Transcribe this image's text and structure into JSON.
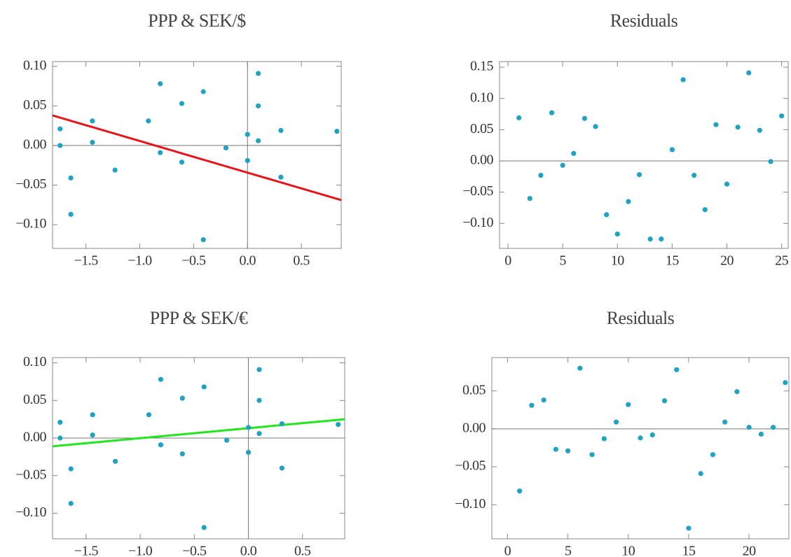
{
  "chart_data": [
    {
      "type": "scatter",
      "title": "PPP & SEK/$",
      "x": [
        -1.74,
        -1.74,
        -1.64,
        -1.64,
        -1.44,
        -1.44,
        -1.23,
        -0.92,
        -0.81,
        -0.81,
        -0.61,
        -0.61,
        -0.41,
        -0.41,
        -0.2,
        0.0,
        0.0,
        0.1,
        0.1,
        0.1,
        0.31,
        0.31,
        0.83
      ],
      "values": [
        0.021,
        0.0,
        -0.041,
        -0.087,
        0.031,
        0.004,
        -0.031,
        0.031,
        0.078,
        -0.009,
        0.053,
        -0.021,
        0.068,
        -0.119,
        -0.003,
        0.014,
        -0.019,
        0.091,
        0.05,
        0.006,
        0.019,
        -0.04,
        0.018
      ],
      "color": "#1fa2c4",
      "fit": {
        "x": [
          -1.81,
          0.87
        ],
        "values": [
          0.038,
          -0.069
        ],
        "color": "#e8141c"
      },
      "xlim": [
        -1.81,
        0.87
      ],
      "ylim": [
        -0.13,
        0.106
      ],
      "xticks": [
        {
          "value": -1.5,
          "label": "−1.5"
        },
        {
          "value": -1.0,
          "label": "−1.0"
        },
        {
          "value": -0.5,
          "label": "−0.5"
        },
        {
          "value": 0.0,
          "label": "0.0"
        },
        {
          "value": 0.5,
          "label": "0.5"
        }
      ],
      "yticks": [
        {
          "value": 0.1,
          "label": "0.10"
        },
        {
          "value": 0.05,
          "label": "0.05"
        },
        {
          "value": 0.0,
          "label": "0.00"
        },
        {
          "value": -0.05,
          "label": "−0.05"
        },
        {
          "value": -0.1,
          "label": "−0.10"
        }
      ],
      "origin_lines": [
        "x",
        "y"
      ]
    },
    {
      "type": "scatter",
      "title": "Residuals",
      "x": [
        1,
        2,
        3,
        4,
        5,
        6,
        7,
        8,
        9,
        10,
        11,
        12,
        13,
        14,
        15,
        16,
        17,
        18,
        19,
        20,
        21,
        22,
        23,
        24,
        25
      ],
      "values": [
        0.069,
        -0.06,
        -0.023,
        0.077,
        -0.007,
        0.012,
        0.068,
        0.055,
        -0.086,
        -0.117,
        -0.065,
        -0.022,
        -0.125,
        -0.125,
        0.018,
        0.13,
        -0.023,
        -0.078,
        0.058,
        -0.037,
        0.054,
        0.141,
        0.049,
        -0.001,
        0.072
      ],
      "color": "#1fa2c4",
      "xlim": [
        -0.77,
        25.6
      ],
      "ylim": [
        -0.14,
        0.159
      ],
      "xticks": [
        0,
        5,
        10,
        15,
        20,
        25
      ],
      "yticks": [
        {
          "value": 0.15,
          "label": "0.15"
        },
        {
          "value": 0.1,
          "label": "0.10"
        },
        {
          "value": 0.05,
          "label": "0.05"
        },
        {
          "value": 0.0,
          "label": "0.00"
        },
        {
          "value": -0.05,
          "label": "−0.05"
        },
        {
          "value": -0.1,
          "label": "−0.10"
        }
      ],
      "origin_lines": [
        "y"
      ]
    },
    {
      "type": "scatter",
      "title": "PPP & SEK/€",
      "x": [
        -1.74,
        -1.74,
        -1.64,
        -1.64,
        -1.44,
        -1.44,
        -1.23,
        -0.92,
        -0.81,
        -0.81,
        -0.61,
        -0.61,
        -0.41,
        -0.41,
        -0.2,
        0.0,
        0.0,
        0.1,
        0.1,
        0.1,
        0.31,
        0.31,
        0.83
      ],
      "values": [
        0.021,
        0.0,
        -0.041,
        -0.087,
        0.031,
        0.004,
        -0.031,
        0.031,
        0.078,
        -0.009,
        0.053,
        -0.021,
        0.068,
        -0.119,
        -0.003,
        0.014,
        -0.019,
        0.091,
        0.05,
        0.006,
        0.019,
        -0.04,
        0.018
      ],
      "color": "#1fa2c4",
      "fit": {
        "x": [
          -1.81,
          0.89
        ],
        "values": [
          -0.011,
          0.025
        ],
        "color": "#22e61e"
      },
      "xlim": [
        -1.81,
        0.89
      ],
      "ylim": [
        -0.134,
        0.107
      ],
      "xticks": [
        {
          "value": -1.5,
          "label": "−1.5"
        },
        {
          "value": -1.0,
          "label": "−1.0"
        },
        {
          "value": -0.5,
          "label": "−0.5"
        },
        {
          "value": 0.0,
          "label": "0.0"
        },
        {
          "value": 0.5,
          "label": "0.5"
        }
      ],
      "yticks": [
        {
          "value": 0.1,
          "label": "0.10"
        },
        {
          "value": 0.05,
          "label": "0.05"
        },
        {
          "value": 0.0,
          "label": "0.00"
        },
        {
          "value": -0.05,
          "label": "−0.05"
        },
        {
          "value": -0.1,
          "label": "−0.10"
        }
      ],
      "origin_lines": [
        "x",
        "y"
      ]
    },
    {
      "type": "scatter",
      "title": "Residuals",
      "x": [
        1,
        2,
        3,
        4,
        5,
        6,
        7,
        8,
        9,
        10,
        11,
        12,
        13,
        14,
        15,
        16,
        17,
        18,
        19,
        20,
        21,
        22,
        23
      ],
      "values": [
        -0.082,
        0.031,
        0.038,
        -0.027,
        -0.029,
        0.08,
        -0.034,
        -0.013,
        0.009,
        0.032,
        -0.012,
        -0.008,
        0.037,
        0.078,
        -0.131,
        -0.059,
        -0.034,
        0.009,
        0.049,
        0.002,
        -0.007,
        0.002,
        0.061
      ],
      "color": "#1fa2c4",
      "xlim": [
        -1.3,
        23.3
      ],
      "ylim": [
        -0.145,
        0.094
      ],
      "xticks": [
        0,
        5,
        10,
        15,
        20
      ],
      "yticks": [
        {
          "value": 0.05,
          "label": "0.05"
        },
        {
          "value": 0.0,
          "label": "0.00"
        },
        {
          "value": -0.05,
          "label": "−0.05"
        },
        {
          "value": -0.1,
          "label": "−0.10"
        }
      ],
      "origin_lines": [
        "y"
      ]
    }
  ]
}
